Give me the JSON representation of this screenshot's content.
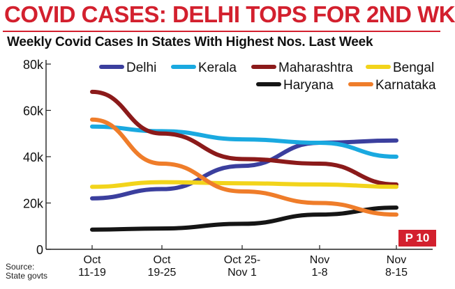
{
  "headline": "COVID CASES: DELHI TOPS FOR 2ND WK",
  "source": [
    "Source:",
    "State govts"
  ],
  "page_badge": "P 10",
  "chart_data": {
    "type": "line",
    "title": "Weekly Covid Cases In States With Highest Nos. Last Week",
    "categories": [
      [
        "Oct",
        "11-19"
      ],
      [
        "Oct",
        "19-25"
      ],
      [
        "Oct 25-",
        "Nov 1"
      ],
      [
        "Nov",
        "1-8"
      ],
      [
        "Nov",
        "8-15"
      ]
    ],
    "y_ticks": [
      "0",
      "20k",
      "40k",
      "60k",
      "80k"
    ],
    "ylim": [
      0,
      80000
    ],
    "grid": false,
    "legend_position": "top",
    "series": [
      {
        "name": "Delhi",
        "color": "#3b3f9e",
        "values": [
          22000,
          26000,
          36000,
          46000,
          47000
        ]
      },
      {
        "name": "Kerala",
        "color": "#1aa9e0",
        "values": [
          53000,
          51000,
          47500,
          46000,
          40000
        ]
      },
      {
        "name": "Maharashtra",
        "color": "#8b1a1a",
        "values": [
          68000,
          50000,
          39000,
          37000,
          28000
        ]
      },
      {
        "name": "Bengal",
        "color": "#f2d41b",
        "values": [
          27000,
          29000,
          28500,
          28000,
          27000
        ]
      },
      {
        "name": "Haryana",
        "color": "#151515",
        "values": [
          8500,
          9000,
          11000,
          15000,
          18000
        ]
      },
      {
        "name": "Karnataka",
        "color": "#ef7d2a",
        "values": [
          56000,
          37000,
          25000,
          20000,
          15000
        ]
      }
    ]
  }
}
